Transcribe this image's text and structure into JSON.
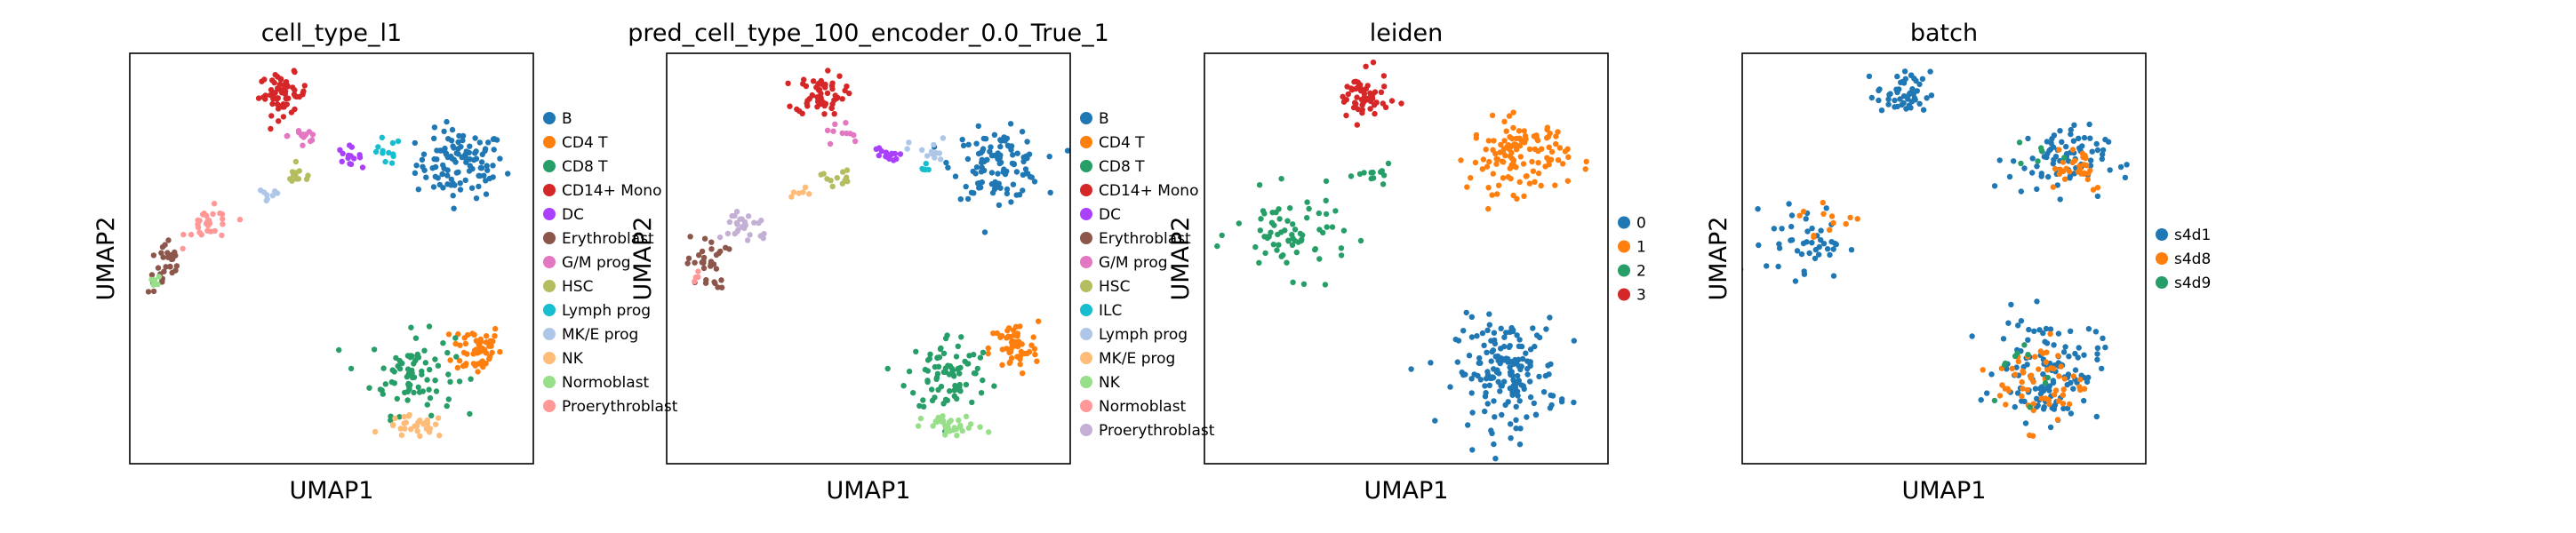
{
  "figure": {
    "panels": [
      {
        "title": "cell_type_l1",
        "xlabel": "UMAP1",
        "ylabel": "UMAP2",
        "legend": [
          {
            "label": "B",
            "color": "#1f77b4"
          },
          {
            "label": "CD4 T",
            "color": "#ff7f0e"
          },
          {
            "label": "CD8 T",
            "color": "#279e68"
          },
          {
            "label": "CD14+ Mono",
            "color": "#d62728"
          },
          {
            "label": "DC",
            "color": "#aa40fc"
          },
          {
            "label": "Erythroblast",
            "color": "#8c564b"
          },
          {
            "label": "G/M prog",
            "color": "#e377c2"
          },
          {
            "label": "HSC",
            "color": "#b5bd61"
          },
          {
            "label": "Lymph prog",
            "color": "#17becf"
          },
          {
            "label": "MK/E prog",
            "color": "#aec7e8"
          },
          {
            "label": "NK",
            "color": "#ffbb78"
          },
          {
            "label": "Normoblast",
            "color": "#98df8a"
          },
          {
            "label": "Proerythroblast",
            "color": "#ff9896"
          }
        ]
      },
      {
        "title": "pred_cell_type_100_encoder_0.0_True_1",
        "xlabel": "UMAP1",
        "ylabel": "UMAP2",
        "legend": [
          {
            "label": "B",
            "color": "#1f77b4"
          },
          {
            "label": "CD4 T",
            "color": "#ff7f0e"
          },
          {
            "label": "CD8 T",
            "color": "#279e68"
          },
          {
            "label": "CD14+ Mono",
            "color": "#d62728"
          },
          {
            "label": "DC",
            "color": "#aa40fc"
          },
          {
            "label": "Erythroblast",
            "color": "#8c564b"
          },
          {
            "label": "G/M prog",
            "color": "#e377c2"
          },
          {
            "label": "HSC",
            "color": "#b5bd61"
          },
          {
            "label": "ILC",
            "color": "#17becf"
          },
          {
            "label": "Lymph prog",
            "color": "#aec7e8"
          },
          {
            "label": "MK/E prog",
            "color": "#ffbb78"
          },
          {
            "label": "NK",
            "color": "#98df8a"
          },
          {
            "label": "Normoblast",
            "color": "#ff9896"
          },
          {
            "label": "Proerythroblast",
            "color": "#c5b0d5"
          }
        ]
      },
      {
        "title": "leiden",
        "xlabel": "UMAP1",
        "ylabel": "UMAP2",
        "legend": [
          {
            "label": "0",
            "color": "#1f77b4"
          },
          {
            "label": "1",
            "color": "#ff7f0e"
          },
          {
            "label": "2",
            "color": "#279e68"
          },
          {
            "label": "3",
            "color": "#d62728"
          }
        ]
      },
      {
        "title": "batch",
        "xlabel": "UMAP1",
        "ylabel": "UMAP2",
        "legend": [
          {
            "label": "s4d1",
            "color": "#1f77b4"
          },
          {
            "label": "s4d8",
            "color": "#ff7f0e"
          },
          {
            "label": "s4d9",
            "color": "#279e68"
          }
        ]
      }
    ]
  },
  "chart_data": [
    {
      "type": "scatter",
      "title": "cell_type_l1",
      "xlabel": "UMAP1",
      "ylabel": "UMAP2",
      "xlim": [
        0,
        10
      ],
      "ylim": [
        0,
        10
      ],
      "grid": false,
      "legend_position": "right",
      "series": [
        {
          "name": "B",
          "color": "#1f77b4",
          "clusters": [
            {
              "center": [
                8.2,
                7.3
              ],
              "spread": [
                1.0,
                0.75
              ],
              "n": 110
            }
          ]
        },
        {
          "name": "CD4 T",
          "color": "#ff7f0e",
          "clusters": [
            {
              "center": [
                8.6,
                2.8
              ],
              "spread": [
                0.55,
                0.6
              ],
              "n": 55
            }
          ]
        },
        {
          "name": "CD8 T",
          "color": "#279e68",
          "clusters": [
            {
              "center": [
                7.0,
                2.2
              ],
              "spread": [
                0.95,
                0.9
              ],
              "n": 80
            }
          ]
        },
        {
          "name": "CD14+ Mono",
          "color": "#d62728",
          "clusters": [
            {
              "center": [
                3.8,
                9.0
              ],
              "spread": [
                0.55,
                0.45
              ],
              "n": 60
            }
          ]
        },
        {
          "name": "DC",
          "color": "#aa40fc",
          "clusters": [
            {
              "center": [
                5.4,
                7.5
              ],
              "spread": [
                0.3,
                0.2
              ],
              "n": 14
            }
          ]
        },
        {
          "name": "Erythroblast",
          "color": "#8c564b",
          "clusters": [
            {
              "center": [
                0.9,
                4.8
              ],
              "spread": [
                0.4,
                0.6
              ],
              "n": 30
            }
          ]
        },
        {
          "name": "G/M prog",
          "color": "#e377c2",
          "clusters": [
            {
              "center": [
                4.3,
                8.0
              ],
              "spread": [
                0.35,
                0.4
              ],
              "n": 14
            }
          ]
        },
        {
          "name": "HSC",
          "color": "#b5bd61",
          "clusters": [
            {
              "center": [
                4.2,
                7.0
              ],
              "spread": [
                0.35,
                0.2
              ],
              "n": 12
            }
          ]
        },
        {
          "name": "Lymph prog",
          "color": "#17becf",
          "clusters": [
            {
              "center": [
                6.3,
                7.6
              ],
              "spread": [
                0.4,
                0.3
              ],
              "n": 12
            }
          ]
        },
        {
          "name": "MK/E prog",
          "color": "#aec7e8",
          "clusters": [
            {
              "center": [
                3.4,
                6.5
              ],
              "spread": [
                0.3,
                0.2
              ],
              "n": 8
            }
          ]
        },
        {
          "name": "NK",
          "color": "#ffbb78",
          "clusters": [
            {
              "center": [
                7.1,
                0.9
              ],
              "spread": [
                0.7,
                0.25
              ],
              "n": 30
            }
          ]
        },
        {
          "name": "Normoblast",
          "color": "#98df8a",
          "clusters": [
            {
              "center": [
                0.6,
                4.4
              ],
              "spread": [
                0.15,
                0.2
              ],
              "n": 6
            }
          ]
        },
        {
          "name": "Proerythroblast",
          "color": "#ff9896",
          "clusters": [
            {
              "center": [
                2.0,
                5.8
              ],
              "spread": [
                0.55,
                0.4
              ],
              "n": 28
            }
          ]
        }
      ]
    },
    {
      "type": "scatter",
      "title": "pred_cell_type_100_encoder_0.0_True_1",
      "xlabel": "UMAP1",
      "ylabel": "UMAP2",
      "xlim": [
        0,
        10
      ],
      "ylim": [
        0,
        10
      ],
      "grid": false,
      "legend_position": "right",
      "series": [
        {
          "name": "B",
          "color": "#1f77b4",
          "clusters": [
            {
              "center": [
                8.2,
                7.3
              ],
              "spread": [
                1.0,
                0.75
              ],
              "n": 110
            }
          ]
        },
        {
          "name": "CD4 T",
          "color": "#ff7f0e",
          "clusters": [
            {
              "center": [
                8.6,
                2.8
              ],
              "spread": [
                0.55,
                0.6
              ],
              "n": 55
            }
          ]
        },
        {
          "name": "CD8 T",
          "color": "#279e68",
          "clusters": [
            {
              "center": [
                7.0,
                2.2
              ],
              "spread": [
                0.95,
                0.9
              ],
              "n": 80
            }
          ]
        },
        {
          "name": "CD14+ Mono",
          "color": "#d62728",
          "clusters": [
            {
              "center": [
                3.8,
                9.0
              ],
              "spread": [
                0.55,
                0.45
              ],
              "n": 60
            }
          ]
        },
        {
          "name": "DC",
          "color": "#aa40fc",
          "clusters": [
            {
              "center": [
                5.4,
                7.5
              ],
              "spread": [
                0.3,
                0.2
              ],
              "n": 14
            }
          ]
        },
        {
          "name": "Erythroblast",
          "color": "#8c564b",
          "clusters": [
            {
              "center": [
                1.0,
                4.9
              ],
              "spread": [
                0.45,
                0.6
              ],
              "n": 32
            }
          ]
        },
        {
          "name": "G/M prog",
          "color": "#e377c2",
          "clusters": [
            {
              "center": [
                4.3,
                8.0
              ],
              "spread": [
                0.35,
                0.4
              ],
              "n": 10
            }
          ]
        },
        {
          "name": "HSC",
          "color": "#b5bd61",
          "clusters": [
            {
              "center": [
                4.2,
                7.0
              ],
              "spread": [
                0.35,
                0.2
              ],
              "n": 12
            }
          ]
        },
        {
          "name": "ILC",
          "color": "#17becf",
          "clusters": [
            {
              "center": [
                6.4,
                7.2
              ],
              "spread": [
                0.2,
                0.2
              ],
              "n": 5
            }
          ]
        },
        {
          "name": "Lymph prog",
          "color": "#aec7e8",
          "clusters": [
            {
              "center": [
                6.5,
                7.6
              ],
              "spread": [
                0.45,
                0.3
              ],
              "n": 14
            }
          ]
        },
        {
          "name": "MK/E prog",
          "color": "#ffbb78",
          "clusters": [
            {
              "center": [
                3.3,
                6.5
              ],
              "spread": [
                0.3,
                0.2
              ],
              "n": 6
            }
          ]
        },
        {
          "name": "NK",
          "color": "#98df8a",
          "clusters": [
            {
              "center": [
                7.1,
                0.9
              ],
              "spread": [
                0.7,
                0.25
              ],
              "n": 32
            }
          ]
        },
        {
          "name": "Normoblast",
          "color": "#ff9896",
          "clusters": [
            {
              "center": [
                0.7,
                4.5
              ],
              "spread": [
                0.15,
                0.2
              ],
              "n": 4
            }
          ]
        },
        {
          "name": "Proerythroblast",
          "color": "#c5b0d5",
          "clusters": [
            {
              "center": [
                2.0,
                5.8
              ],
              "spread": [
                0.55,
                0.4
              ],
              "n": 28
            }
          ]
        }
      ]
    },
    {
      "type": "scatter",
      "title": "leiden",
      "xlabel": "UMAP1",
      "ylabel": "UMAP2",
      "xlim": [
        0,
        10
      ],
      "ylim": [
        0,
        10
      ],
      "grid": false,
      "legend_position": "right",
      "series": [
        {
          "name": "0",
          "color": "#1f77b4",
          "clusters": [
            {
              "center": [
                7.5,
                2.2
              ],
              "spread": [
                1.15,
                1.2
              ],
              "n": 170
            }
          ]
        },
        {
          "name": "1",
          "color": "#ff7f0e",
          "clusters": [
            {
              "center": [
                7.8,
                7.5
              ],
              "spread": [
                1.1,
                0.8
              ],
              "n": 120
            }
          ]
        },
        {
          "name": "2",
          "color": "#279e68",
          "clusters": [
            {
              "center": [
                2.2,
                5.6
              ],
              "spread": [
                1.3,
                0.9
              ],
              "n": 70
            },
            {
              "center": [
                4.2,
                7.0
              ],
              "spread": [
                0.4,
                0.25
              ],
              "n": 12
            }
          ]
        },
        {
          "name": "3",
          "color": "#d62728",
          "clusters": [
            {
              "center": [
                3.9,
                8.9
              ],
              "spread": [
                0.6,
                0.55
              ],
              "n": 60
            }
          ]
        }
      ]
    },
    {
      "type": "scatter",
      "title": "batch",
      "xlabel": "UMAP1",
      "ylabel": "UMAP2",
      "xlim": [
        0,
        10
      ],
      "ylim": [
        0,
        10
      ],
      "grid": false,
      "legend_position": "right",
      "series": [
        {
          "name": "s4d1",
          "color": "#1f77b4",
          "clusters": [
            {
              "center": [
                7.6,
                2.3
              ],
              "spread": [
                1.15,
                1.15
              ],
              "n": 120
            },
            {
              "center": [
                7.8,
                7.4
              ],
              "spread": [
                1.1,
                0.75
              ],
              "n": 80
            },
            {
              "center": [
                4.0,
                9.0
              ],
              "spread": [
                0.6,
                0.5
              ],
              "n": 50
            },
            {
              "center": [
                1.6,
                5.4
              ],
              "spread": [
                0.9,
                0.8
              ],
              "n": 45
            }
          ]
        },
        {
          "name": "s4d8",
          "color": "#ff7f0e",
          "clusters": [
            {
              "center": [
                7.4,
                2.0
              ],
              "spread": [
                1.0,
                1.0
              ],
              "n": 60
            },
            {
              "center": [
                8.2,
                7.3
              ],
              "spread": [
                0.8,
                0.6
              ],
              "n": 30
            },
            {
              "center": [
                2.2,
                5.9
              ],
              "spread": [
                0.7,
                0.5
              ],
              "n": 12
            }
          ]
        },
        {
          "name": "s4d9",
          "color": "#279e68",
          "clusters": [
            {
              "center": [
                7.0,
                2.5
              ],
              "spread": [
                0.8,
                0.8
              ],
              "n": 10
            },
            {
              "center": [
                7.5,
                7.4
              ],
              "spread": [
                0.6,
                0.4
              ],
              "n": 6
            }
          ]
        }
      ]
    }
  ]
}
